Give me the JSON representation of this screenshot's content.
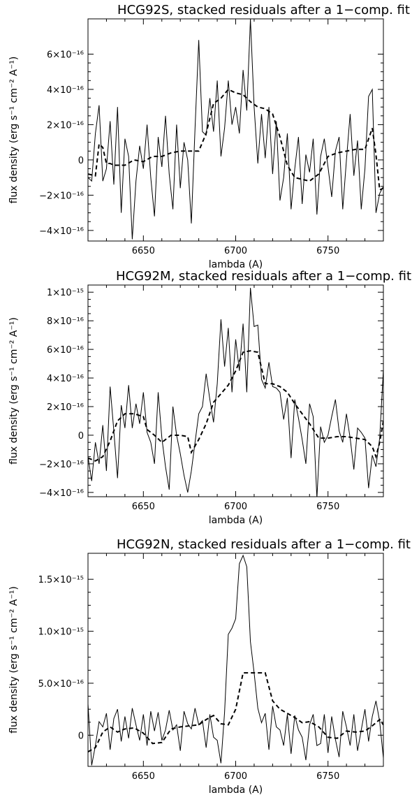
{
  "chart_data": [
    {
      "type": "line",
      "title": "HCG92S, stacked residuals after a 1−comp. fit",
      "xlabel": "lambda (A)",
      "ylabel": "flux density (erg s⁻¹ cm⁻² A⁻¹)",
      "xlim": [
        6620,
        6780
      ],
      "ylim": [
        -4.6e-16,
        8e-16
      ],
      "xticks": [
        6650,
        6700,
        6750
      ],
      "xtick_labels": [
        "6650",
        "6700",
        "6750"
      ],
      "yticks": [
        -4e-16,
        -2e-16,
        0,
        2e-16,
        4e-16,
        6e-16
      ],
      "ytick_labels": [
        "−4×10⁻¹⁶",
        "−2×10⁻¹⁶",
        "0",
        "2×10⁻¹⁶",
        "4×10⁻¹⁶",
        "6×10⁻¹⁶"
      ],
      "series": [
        {
          "style": "solid",
          "x": [
            6620,
            6622,
            6624,
            6626,
            6628,
            6630,
            6632,
            6634,
            6636,
            6638,
            6640,
            6642,
            6644,
            6646,
            6648,
            6650,
            6652,
            6654,
            6656,
            6658,
            6660,
            6662,
            6664,
            6666,
            6668,
            6670,
            6672,
            6674,
            6676,
            6678,
            6680,
            6682,
            6684,
            6686,
            6688,
            6690,
            6692,
            6694,
            6696,
            6698,
            6700,
            6702,
            6704,
            6706,
            6708,
            6710,
            6712,
            6714,
            6716,
            6718,
            6720,
            6722,
            6724,
            6726,
            6728,
            6730,
            6732,
            6734,
            6736,
            6738,
            6740,
            6742,
            6744,
            6746,
            6748,
            6750,
            6752,
            6754,
            6756,
            6758,
            6760,
            6762,
            6764,
            6766,
            6768,
            6770,
            6772,
            6774,
            6776,
            6778,
            6780
          ],
          "y": [
            -1e-16,
            -1.2e-16,
            1.5e-16,
            3.1e-16,
            -1.2e-16,
            -5e-17,
            2.2e-16,
            -1.4e-16,
            3e-16,
            -3e-16,
            1.2e-16,
            2e-17,
            -4.5e-16,
            -1.2e-16,
            8e-17,
            -5e-17,
            2e-16,
            -1e-16,
            -3.2e-16,
            1.3e-16,
            -4e-17,
            2.5e-16,
            -8e-17,
            -2.8e-16,
            2e-16,
            -1.6e-16,
            1e-16,
            0.0,
            -3.6e-16,
            1.8e-16,
            6.8e-16,
            1.6e-16,
            1.4e-16,
            3.5e-16,
            1.6e-16,
            4.5e-16,
            2e-17,
            1.8e-16,
            4.5e-16,
            2e-16,
            3e-16,
            1.5e-16,
            5.1e-16,
            2.8e-16,
            8e-16,
            3e-16,
            -2e-17,
            2.6e-16,
            1e-17,
            3e-16,
            -8e-17,
            2.2e-16,
            -2.3e-16,
            -1e-16,
            1.5e-16,
            -2.8e-16,
            -5e-17,
            1.3e-16,
            -2.5e-16,
            3e-17,
            -7e-17,
            1.2e-16,
            -3.1e-16,
            2e-17,
            1.2e-16,
            -4e-17,
            -2.1e-16,
            5e-17,
            1.3e-16,
            -2.8e-16,
            0.0,
            2.6e-16,
            -9e-17,
            1.1e-16,
            -2.8e-16,
            -5e-17,
            3.6e-16,
            4e-16,
            -3e-16,
            -1.9e-16,
            -1.5e-16
          ]
        },
        {
          "style": "dashed",
          "x": [
            6620,
            6624,
            6626,
            6628,
            6630,
            6632,
            6634,
            6636,
            6640,
            6645,
            6650,
            6655,
            6660,
            6665,
            6670,
            6675,
            6680,
            6684,
            6688,
            6692,
            6696,
            6700,
            6704,
            6708,
            6712,
            6716,
            6720,
            6724,
            6728,
            6732,
            6736,
            6740,
            6745,
            6750,
            6755,
            6760,
            6765,
            6770,
            6774,
            6776,
            6778,
            6780
          ],
          "y": [
            -8e-17,
            -9e-17,
            9e-17,
            7e-17,
            -2e-17,
            -2e-17,
            -3e-17,
            -3e-17,
            -3e-17,
            0.0,
            -1e-17,
            2e-17,
            2e-17,
            4e-17,
            5e-17,
            5e-17,
            5e-17,
            1.5e-16,
            3.2e-16,
            3.5e-16,
            4e-16,
            3.8e-16,
            3.7e-16,
            3.3e-16,
            3e-16,
            2.9e-16,
            2.6e-16,
            1.3e-16,
            -3e-17,
            -1e-16,
            -1.1e-16,
            -1.2e-16,
            -8e-17,
            2e-17,
            4e-17,
            5e-17,
            6e-17,
            6e-17,
            1.8e-16,
            3e-17,
            -1.7e-16,
            -1.6e-16
          ]
        }
      ]
    },
    {
      "type": "line",
      "title": "HCG92M, stacked residuals after a 1−comp. fit",
      "xlabel": "lambda (A)",
      "ylabel": "flux density (erg s⁻¹ cm⁻² A⁻¹)",
      "xlim": [
        6620,
        6780
      ],
      "ylim": [
        -4.3e-16,
        1.05e-15
      ],
      "xticks": [
        6650,
        6700,
        6750
      ],
      "xtick_labels": [
        "6650",
        "6700",
        "6750"
      ],
      "yticks": [
        -4e-16,
        -2e-16,
        0,
        2e-16,
        4e-16,
        6e-16,
        8e-16,
        1e-15
      ],
      "ytick_labels": [
        "−4×10⁻¹⁶",
        "−2×10⁻¹⁶",
        "0",
        "2×10⁻¹⁶",
        "4×10⁻¹⁶",
        "6×10⁻¹⁶",
        "8×10⁻¹⁶",
        "1×10⁻¹⁵"
      ],
      "series": [
        {
          "style": "solid",
          "x": [
            6620,
            6622,
            6624,
            6626,
            6628,
            6630,
            6632,
            6634,
            6636,
            6638,
            6640,
            6642,
            6644,
            6646,
            6648,
            6650,
            6652,
            6654,
            6656,
            6658,
            6660,
            6662,
            6664,
            6666,
            6668,
            6670,
            6672,
            6674,
            6676,
            6678,
            6680,
            6682,
            6684,
            6686,
            6688,
            6690,
            6692,
            6694,
            6696,
            6698,
            6700,
            6702,
            6704,
            6706,
            6708,
            6710,
            6712,
            6714,
            6716,
            6718,
            6720,
            6722,
            6724,
            6726,
            6728,
            6730,
            6732,
            6734,
            6736,
            6738,
            6740,
            6742,
            6744,
            6746,
            6748,
            6750,
            6752,
            6754,
            6756,
            6758,
            6760,
            6762,
            6764,
            6766,
            6768,
            6770,
            6772,
            6774,
            6776,
            6778,
            6780
          ],
          "y": [
            -1.5e-16,
            -3.2e-16,
            -5e-17,
            -2e-16,
            7e-17,
            -2.5e-16,
            3.4e-16,
            3e-17,
            -3e-16,
            2.1e-16,
            5e-17,
            3.5e-16,
            5e-17,
            2.2e-16,
            8e-17,
            3e-16,
            2e-17,
            -5e-17,
            -2e-16,
            3e-16,
            -2e-17,
            -2.2e-16,
            -3.8e-16,
            2e-16,
            0.0,
            -1.3e-16,
            -2.8e-16,
            -4e-16,
            -2.5e-16,
            -5e-17,
            1.5e-16,
            2e-16,
            4.3e-16,
            2.5e-16,
            9e-17,
            3.6e-16,
            8.1e-16,
            4.8e-16,
            7.5e-16,
            3e-16,
            6.7e-16,
            4.5e-16,
            7.8e-16,
            3e-16,
            1.03e-15,
            7.6e-16,
            7.7e-16,
            3.9e-16,
            3.3e-16,
            5.1e-16,
            3.4e-16,
            3.3e-16,
            3e-16,
            1.1e-16,
            2.6e-16,
            -1.6e-16,
            2.5e-16,
            1.2e-16,
            -3e-17,
            -2e-16,
            2.2e-16,
            1.3e-16,
            -4.4e-16,
            6e-17,
            -5e-17,
            0.0,
            1.3e-16,
            2.5e-16,
            3e-17,
            -5e-17,
            1.5e-16,
            -2e-17,
            -2.4e-16,
            5e-17,
            2e-17,
            -2e-17,
            -3.7e-16,
            -1.4e-16,
            -2.2e-16,
            -2e-17,
            4.6e-16
          ]
        },
        {
          "style": "dashed",
          "x": [
            6620,
            6624,
            6628,
            6632,
            6636,
            6640,
            6645,
            6650,
            6652,
            6656,
            6660,
            6665,
            6670,
            6674,
            6676,
            6680,
            6684,
            6688,
            6692,
            6696,
            6700,
            6704,
            6708,
            6712,
            6716,
            6720,
            6724,
            6728,
            6732,
            6736,
            6740,
            6745,
            6750,
            6755,
            6760,
            6765,
            6770,
            6774,
            6776,
            6778,
            6780
          ],
          "y": [
            -1.6e-16,
            -1.8e-16,
            -1.5e-16,
            -4e-17,
            1e-16,
            1.5e-16,
            1.5e-16,
            1.3e-16,
            4e-17,
            0.0,
            -5e-17,
            0.0,
            0.0,
            -1e-17,
            -1.2e-16,
            -3e-17,
            8e-17,
            2.3e-16,
            2.9e-16,
            3.5e-16,
            4.5e-16,
            5.8e-16,
            5.9e-16,
            5.8e-16,
            3.6e-16,
            3.6e-16,
            3.4e-16,
            3e-16,
            2.2e-16,
            1.5e-16,
            8e-17,
            -2e-17,
            -2e-17,
            -1e-17,
            -1e-17,
            -2e-17,
            -3e-17,
            -8e-17,
            -1.5e-16,
            -5e-17,
            1e-16
          ]
        }
      ]
    },
    {
      "type": "line",
      "title": "HCG92N, stacked residuals after a 1−comp. fit",
      "xlabel": "lambda (A)",
      "ylabel": "flux density (erg s⁻¹ cm⁻² A⁻¹)",
      "xlim": [
        6620,
        6780
      ],
      "ylim": [
        -3e-16,
        1.75e-15
      ],
      "xticks": [
        6650,
        6700,
        6750
      ],
      "xtick_labels": [
        "6650",
        "6700",
        "6750"
      ],
      "yticks": [
        0,
        5e-16,
        1e-15,
        1.5e-15
      ],
      "ytick_labels": [
        "0",
        "5.0×10⁻¹⁶",
        "1.0×10⁻¹⁵",
        "1.5×10⁻¹⁵"
      ],
      "series": [
        {
          "style": "solid",
          "x": [
            6620,
            6622,
            6624,
            6626,
            6628,
            6630,
            6632,
            6634,
            6636,
            6638,
            6640,
            6642,
            6644,
            6646,
            6648,
            6650,
            6652,
            6654,
            6656,
            6658,
            6660,
            6662,
            6664,
            6666,
            6668,
            6670,
            6672,
            6674,
            6676,
            6678,
            6680,
            6682,
            6684,
            6686,
            6688,
            6690,
            6692,
            6694,
            6696,
            6698,
            6700,
            6702,
            6704,
            6706,
            6708,
            6710,
            6712,
            6714,
            6716,
            6718,
            6720,
            6722,
            6724,
            6726,
            6728,
            6730,
            6732,
            6734,
            6736,
            6738,
            6740,
            6742,
            6744,
            6746,
            6748,
            6750,
            6752,
            6754,
            6756,
            6758,
            6760,
            6762,
            6764,
            6766,
            6768,
            6770,
            6772,
            6774,
            6776,
            6778,
            6780
          ],
          "y": [
            3e-16,
            -2.9e-16,
            -1e-16,
            1.3e-16,
            8e-17,
            2.1e-16,
            -1.4e-16,
            1.6e-16,
            2.5e-16,
            -6e-17,
            1.8e-16,
            -3e-17,
            2.6e-16,
            1e-16,
            -5e-17,
            2e-16,
            -1e-16,
            2.3e-16,
            4e-17,
            2.2e-16,
            -5e-17,
            5e-17,
            2.4e-16,
            5e-17,
            1e-16,
            -1.5e-16,
            2.3e-16,
            1.1e-16,
            6e-17,
            2.6e-16,
            1e-16,
            1.4e-16,
            -1.2e-16,
            2e-16,
            -2e-17,
            -5e-17,
            -2.7e-16,
            2.2e-16,
            9.7e-16,
            1.03e-15,
            1.12e-15,
            1.65e-15,
            1.73e-15,
            1.62e-15,
            9e-16,
            6e-16,
            2.6e-16,
            1.2e-16,
            2.1e-16,
            -1.4e-16,
            2.8e-16,
            8e-17,
            5e-17,
            -1e-16,
            2e-16,
            -1.8e-16,
            1.9e-16,
            5e-17,
            -2e-17,
            -2.4e-16,
            1e-16,
            2e-16,
            -1e-16,
            -8e-17,
            2e-16,
            -1.7e-16,
            1.8e-16,
            -4e-17,
            -2.1e-16,
            2.3e-16,
            8e-17,
            -1e-16,
            2e-16,
            -1.5e-16,
            5e-17,
            2.5e-16,
            -6e-17,
            1.8e-16,
            3.3e-16,
            1.3e-16,
            -2.2e-16
          ]
        },
        {
          "style": "dashed",
          "x": [
            6620,
            6624,
            6628,
            6632,
            6636,
            6640,
            6645,
            6650,
            6655,
            6660,
            6665,
            6670,
            6675,
            6680,
            6684,
            6688,
            6692,
            6696,
            6700,
            6704,
            6708,
            6712,
            6716,
            6720,
            6724,
            6728,
            6732,
            6736,
            6740,
            6745,
            6750,
            6755,
            6760,
            6765,
            6770,
            6774,
            6778,
            6780
          ],
          "y": [
            -1.6e-16,
            -1.2e-16,
            3e-17,
            8e-17,
            3e-17,
            6e-17,
            7e-17,
            2e-17,
            -8e-17,
            -7e-17,
            6e-17,
            8e-17,
            9e-17,
            1e-16,
            1.5e-16,
            1.9e-16,
            1.1e-16,
            1e-16,
            2.5e-16,
            6e-16,
            6e-16,
            6e-16,
            6e-16,
            3.3e-16,
            2.5e-16,
            2.1e-16,
            1.7e-16,
            1.2e-16,
            1.3e-16,
            8e-17,
            -2e-17,
            -3e-17,
            4e-17,
            3e-17,
            4e-17,
            9e-17,
            1.5e-16,
            1e-16
          ]
        }
      ]
    }
  ]
}
